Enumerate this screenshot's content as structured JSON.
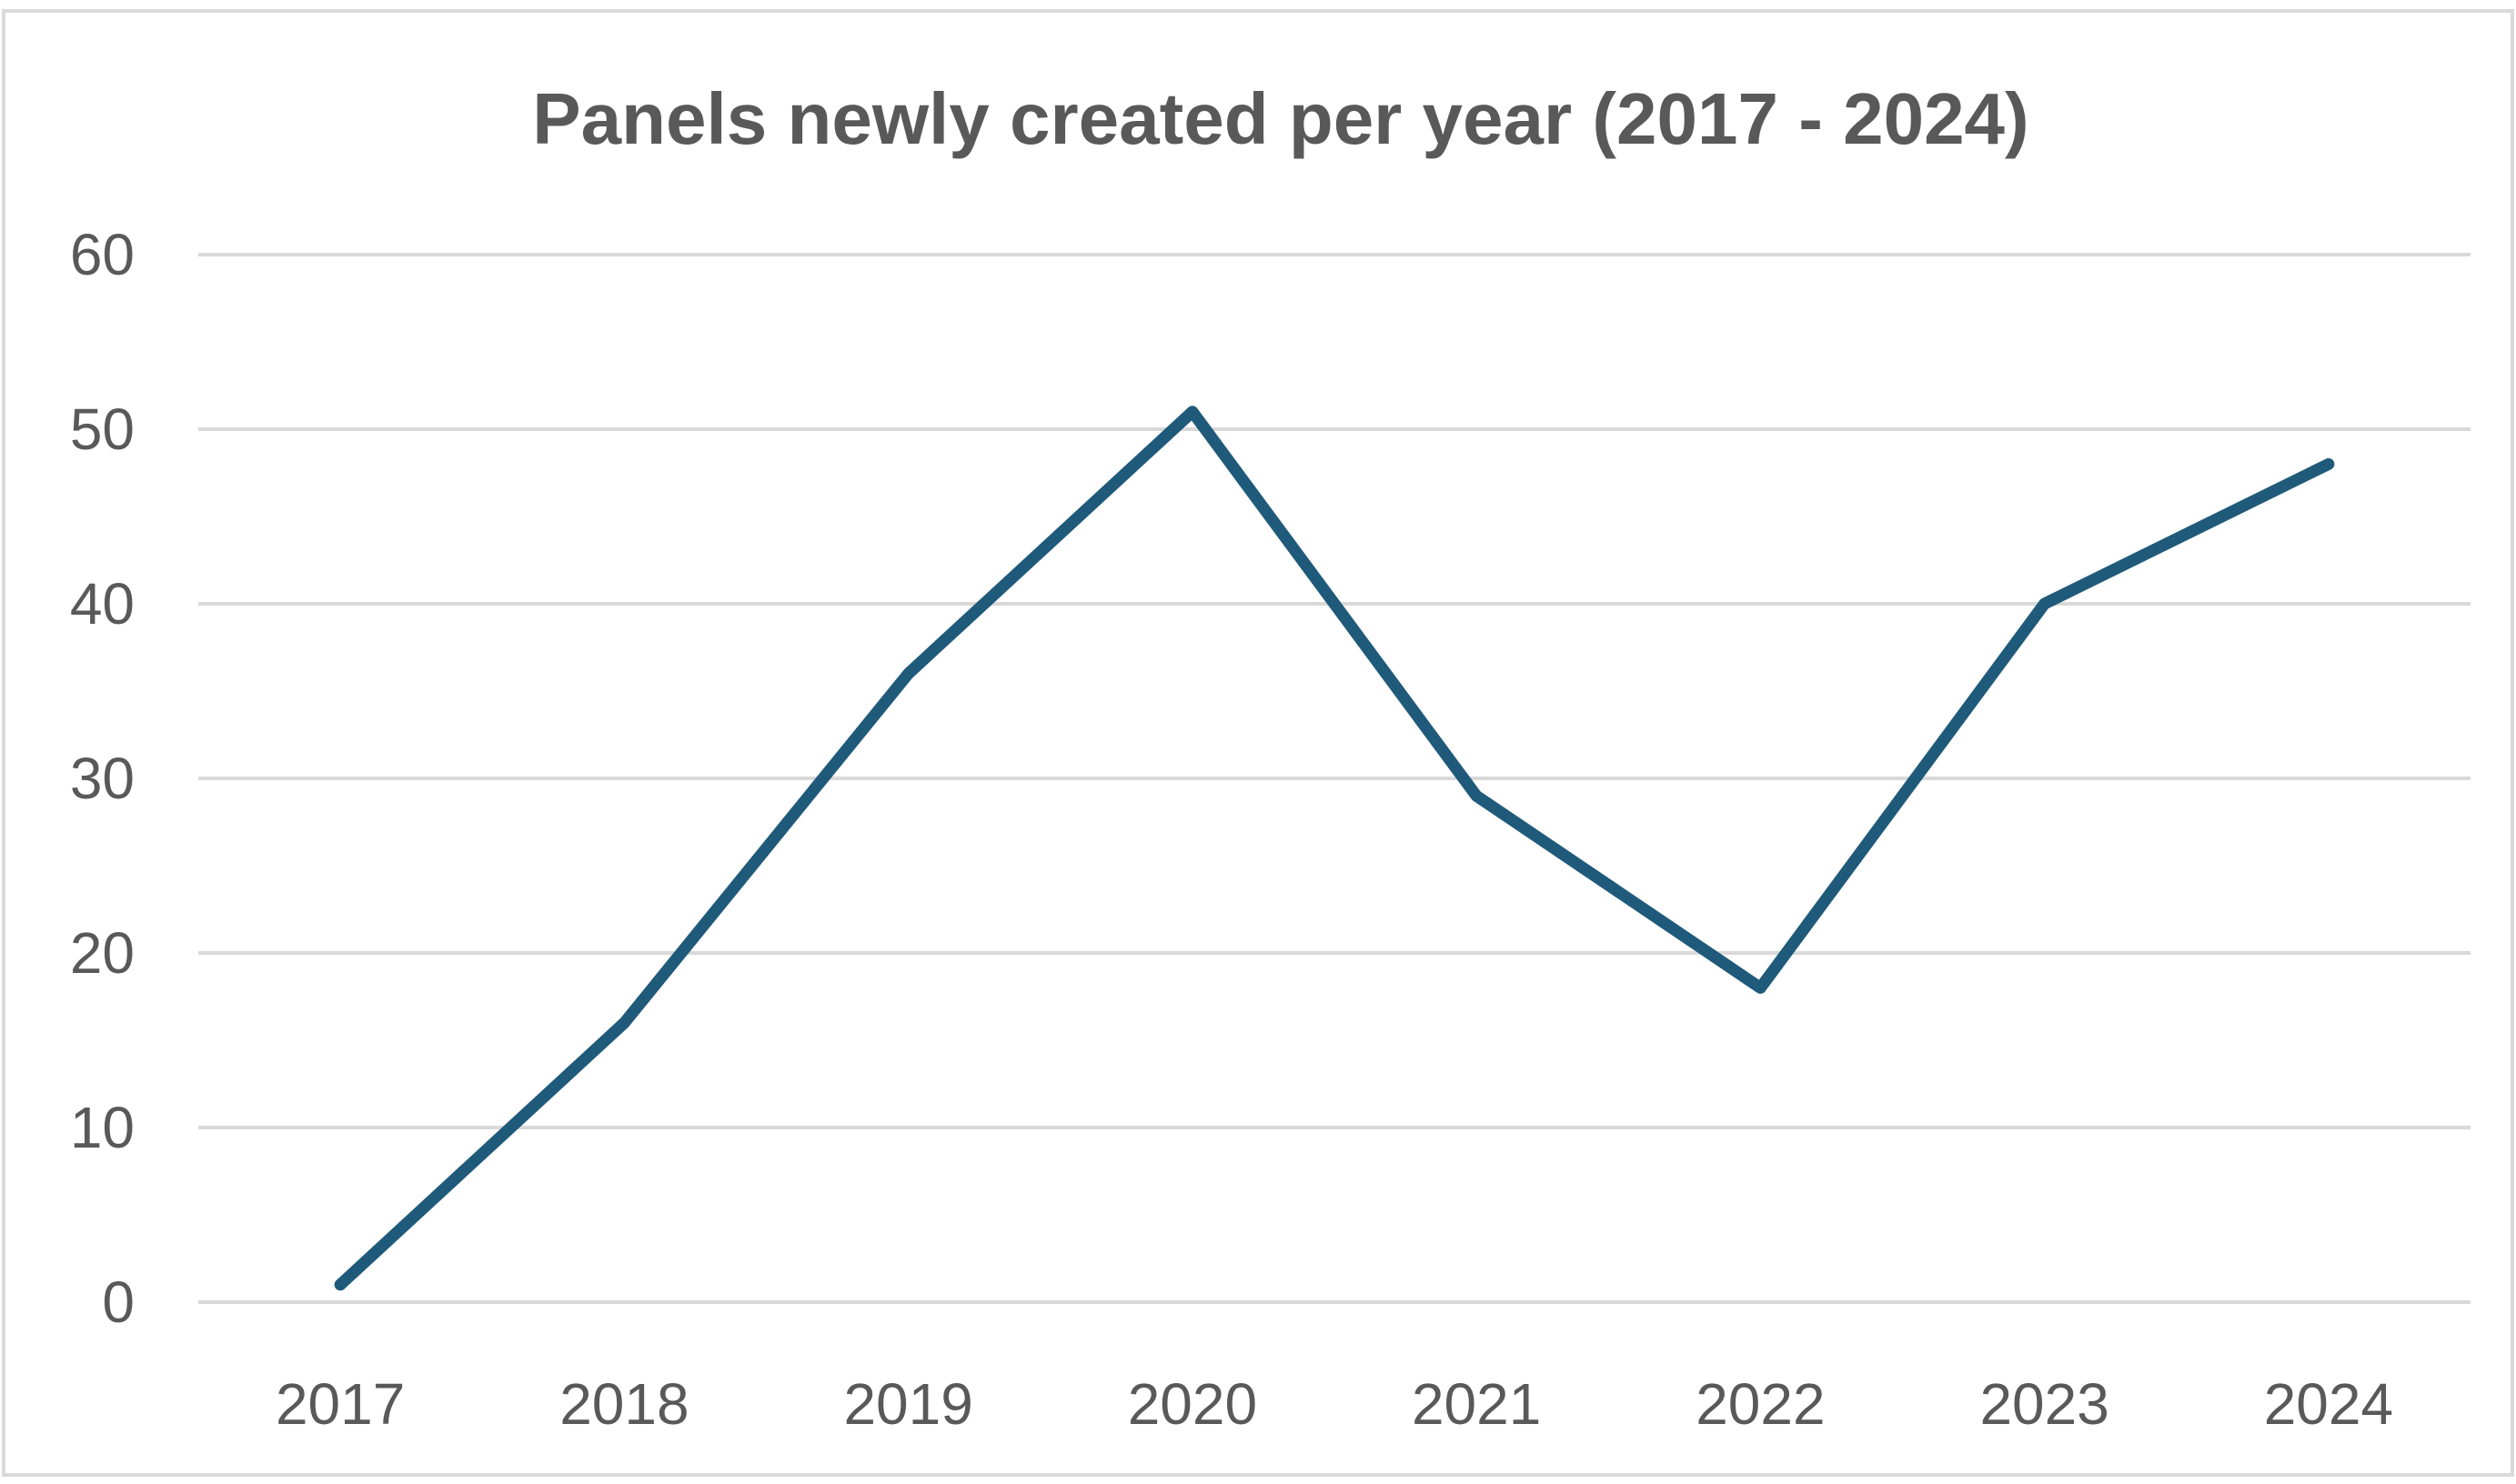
{
  "chart_data": {
    "type": "line",
    "title": "Panels newly created per year (2017 - 2024)",
    "xlabel": "",
    "ylabel": "",
    "categories": [
      "2017",
      "2018",
      "2019",
      "2020",
      "2021",
      "2022",
      "2023",
      "2024"
    ],
    "series": [
      {
        "values": [
          1,
          16,
          36,
          51,
          29,
          18,
          40,
          48
        ],
        "color": "#1f5a7a"
      }
    ],
    "ylim": [
      0,
      60
    ],
    "yticks": [
      0,
      10,
      20,
      30,
      40,
      50,
      60
    ],
    "ytick_labels": [
      "0",
      "10",
      "20",
      "30",
      "40",
      "50",
      "60"
    ],
    "grid": true,
    "legend": "none"
  }
}
